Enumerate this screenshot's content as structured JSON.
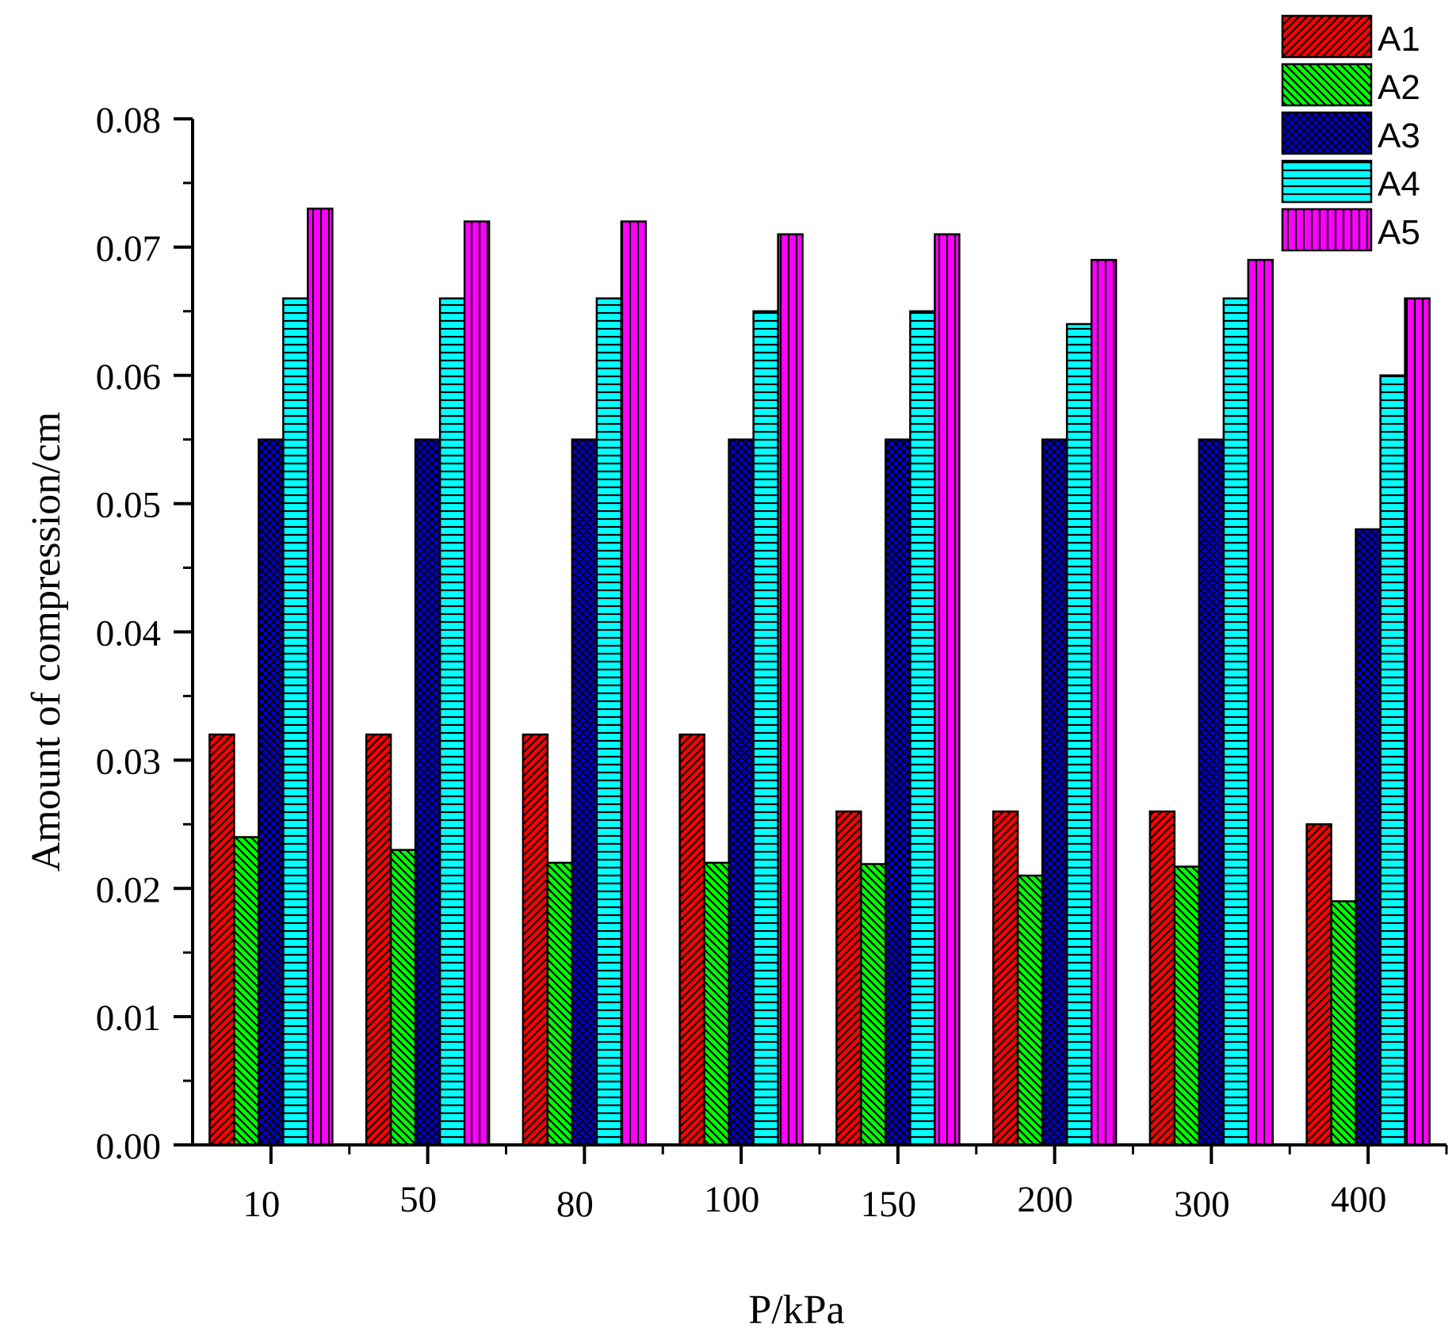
{
  "chart_data": {
    "type": "bar",
    "title": "",
    "xlabel": "P/kPa",
    "ylabel": "Amount of compression/cm",
    "categories": [
      "10",
      "50",
      "80",
      "100",
      "150",
      "200",
      "300",
      "400"
    ],
    "ylim": [
      0,
      0.08
    ],
    "yticks": [
      "0.00",
      "0.01",
      "0.02",
      "0.03",
      "0.04",
      "0.05",
      "0.06",
      "0.07",
      "0.08"
    ],
    "grid": false,
    "legend_position": "top-right",
    "series": [
      {
        "name": "A1",
        "color": "#ff0000",
        "pattern": "diagonal-right",
        "values": [
          0.032,
          0.032,
          0.032,
          0.032,
          0.026,
          0.026,
          0.026,
          0.025
        ]
      },
      {
        "name": "A2",
        "color": "#00ff00",
        "pattern": "diagonal-left",
        "values": [
          0.024,
          0.023,
          0.022,
          0.022,
          0.0219,
          0.021,
          0.0217,
          0.019
        ]
      },
      {
        "name": "A3",
        "color": "#0000cc",
        "pattern": "crosshatch",
        "values": [
          0.055,
          0.055,
          0.055,
          0.055,
          0.055,
          0.055,
          0.055,
          0.048
        ]
      },
      {
        "name": "A4",
        "color": "#00ffff",
        "pattern": "horizontal",
        "values": [
          0.066,
          0.066,
          0.066,
          0.065,
          0.065,
          0.064,
          0.066,
          0.06
        ]
      },
      {
        "name": "A5",
        "color": "#ff00ff",
        "pattern": "vertical",
        "values": [
          0.073,
          0.072,
          0.072,
          0.071,
          0.071,
          0.069,
          0.069,
          0.066
        ]
      }
    ]
  }
}
